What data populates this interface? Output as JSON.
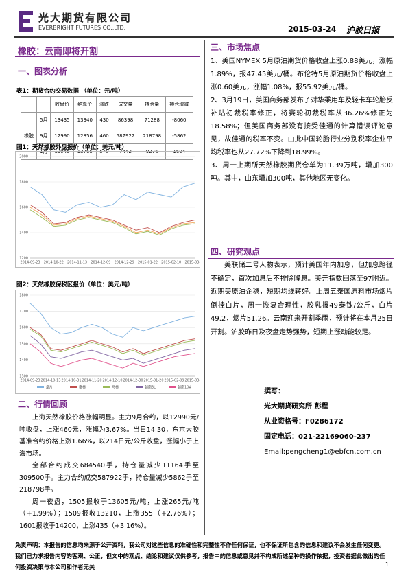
{
  "header": {
    "company_cn": "光大期货有限公司",
    "company_en": "EVERBRIGHT FUTURES CO.,LTD.",
    "date": "2015-03-24",
    "report": "沪胶日报"
  },
  "title": "橡胶：云南即将开割",
  "section1": {
    "heading": "一、图表分析",
    "table_caption": "表1：期货合约交易数据 （单位：元/吨）",
    "table": {
      "header": [
        "收盘价",
        "结算价",
        "涨跌",
        "成交量",
        "持仓量",
        "持仓增减"
      ],
      "row_label": "橡胶",
      "rows": [
        [
          "5月",
          13435,
          13340,
          430,
          86398,
          71288,
          -8060
        ],
        [
          "9月",
          12990,
          12856,
          460,
          587922,
          218798,
          -5862
        ],
        [
          "1月",
          13945,
          13765,
          570,
          7442,
          9276,
          1694
        ]
      ]
    },
    "figures": [
      {
        "caption": "图1：天然橡胶外盘报价（单位：美元/吨）",
        "type": "line",
        "categories": [
          "2014-09-23",
          null,
          "2014-10-22",
          null,
          "2014-11-13",
          null,
          "2014-12-09",
          null,
          "2014-12-29",
          null,
          "2015-01-22",
          null,
          "2015-02-10",
          null,
          "2015-03-18"
        ],
        "ylim": [
          1200,
          2000
        ],
        "yticks": [
          1200,
          1400,
          1600,
          1800,
          2000
        ],
        "grid": true,
        "series": [
          {
            "color": "#7fb2e0",
            "values": [
              1760,
              1700,
              1580,
              1560,
              1620,
              1640,
              1600,
              1620,
              1700,
              1660,
              1720,
              1700,
              1680,
              1760,
              1790
            ]
          },
          {
            "color": "#c0504d",
            "values": [
              1620,
              1560,
              1470,
              1480,
              1520,
              1540,
              1520,
              1500,
              1460,
              1420,
              1440,
              1400,
              1450,
              1480,
              1500
            ]
          },
          {
            "color": "#f2a65a",
            "values": [
              1600,
              1540,
              1460,
              1470,
              1510,
              1530,
              1510,
              1490,
              1450,
              1400,
              1420,
              1390,
              1440,
              1470,
              1480
            ]
          },
          {
            "color": "#9bbb59",
            "values": [
              1580,
              1520,
              1450,
              1460,
              1500,
              1520,
              1500,
              1480,
              1440,
              1390,
              1410,
              1380,
              1430,
              1460,
              1470
            ]
          }
        ]
      },
      {
        "caption": "图2：天然橡胶保税区报价（单位：美元/吨）",
        "type": "line",
        "categories": [
          "2014-09-23",
          null,
          "2014-10-13",
          null,
          "2014-10-31",
          null,
          "2014-11-20",
          null,
          "2014-12-10",
          null,
          "2014-12-30",
          null,
          "2015-01-20",
          null,
          "2015-02-09",
          null,
          "2015-03-18"
        ],
        "ylim": [
          1300,
          1800
        ],
        "yticks": [
          1300,
          1400,
          1500,
          1600,
          1700,
          1800
        ],
        "grid": true,
        "series": [
          {
            "name": "烟片",
            "color": "#7fb2e0",
            "values": [
              1750,
              1690,
              1600,
              1560,
              1570,
              1600,
              1620,
              1600,
              1560,
              1540,
              1600,
              1580,
              1600,
              1620,
              1640,
              1660,
              1670
            ]
          },
          {
            "name": "泰标",
            "color": "#c0504d",
            "values": [
              1600,
              1560,
              1470,
              1460,
              1480,
              1500,
              1520,
              1500,
              1480,
              1450,
              1470,
              1440,
              1460,
              1480,
              1500,
              1520,
              1530
            ]
          },
          {
            "name": "马标",
            "color": "#9bbb59",
            "values": [
              1590,
              1550,
              1460,
              1450,
              1470,
              1490,
              1510,
              1490,
              1470,
              1440,
              1460,
              1430,
              1450,
              1470,
              1490,
              1510,
              1520
            ]
          },
          {
            "name": "越南3L",
            "color": "#8064a2",
            "values": [
              1550,
              1500,
              1420,
              1410,
              1430,
              1450,
              1460,
              1440,
              1420,
              1400,
              1410,
              1380,
              1400,
              1420,
              1440,
              1460,
              1470
            ]
          },
          {
            "name": "越南10#",
            "color": "#e0508a",
            "values": [
              1500,
              1450,
              1380,
              1360,
              1380,
              1400,
              1410,
              1390,
              1370,
              1350,
              1380,
              1360,
              1380,
              1400,
              1420,
              1430,
              1440
            ]
          }
        ]
      }
    ]
  },
  "section2": {
    "heading": "二、行情回顾",
    "paragraphs": [
      "上海天然橡胶价格涨幅明显。主力9月合约，以12990元/吨收盘，上涨460元，涨幅为3.67%。当日14:30，东京大胶基准合约价格上涨1.66%，以214日元/公斤收盘，涨幅小于上海市场。",
      "全部合约成交684540手，持仓量减少11164手至309500手。主力合约成交587922手，持仓量减少5862手至218798手。",
      "周一夜盘，1505报收于13605元/吨，上涨265元/吨（+1.99%）；1509报收13210，上涨355（+2.76%）；1601报收于14200，上涨435（+3.16%）。"
    ]
  },
  "section3": {
    "heading": "三、市场焦点",
    "paragraphs": [
      "1、美国NYMEX 5月原油期货价格收盘上涨0.88美元，涨幅1.89%，报47.45美元/桶。布伦特5月原油期货价格收盘上涨0.60美元，涨幅1.08%，报55.92美元/桶。",
      "2、3月19日，美国商务部发布了对华乘用车及轻卡车轮胎反补贴初裁税率修正，将赛轮初裁税率从36.26%修正为18.58%；但美国商务部没有接受佳通的计算错误评论意见，故佳通的税率不变。由此中国轮胎行业分别税率企业平均税率也从27.72%下降到18.99%。",
      "3、周一上期所天然橡胶期货仓单为11.39万吨，增加300吨。其中，山东增加300吨，其他地区无变化。"
    ]
  },
  "section4": {
    "heading": "四、研究观点",
    "paragraphs": [
      "美联储二号人物表示，预计美国年内加息，但加息路径不确定，首次加息后不排除降息。美元指数回落至97附近。近期美原油企稳，短期均线转好。上周五泰国原料市场烟片倒挂白片，周一恢复合理性，胶乳报49泰铢/公斤，白片49.2，烟片51.26。云南迎来开割季雨，预计将在本月25日开割。沪胶昨日及夜盘走势强势，短期上涨动能较足。"
    ]
  },
  "author": {
    "label": "撰写：",
    "name": "光大期货研究所 彭程",
    "license": "从业资格号：F0286172",
    "phone": "固定电话：021-22169060-237",
    "email": "Email:pengcheng1@ebfcn.com.cn"
  },
  "footer": {
    "disclaimer": "免责声明：本报告的信息均来源于公开资料，我公司对这些信息的准确性和完整性不作任何保证，也不保证所包含的信息和建议不会发生任何变更。我们已力求报告内容的客观、公正，但文中的观点、结论和建议仅供参考，报告中的信息或意见并不构成所述品种的操作依据，投资者据此做出的任何投资决策与本公司和作者无关",
    "page": "1"
  }
}
